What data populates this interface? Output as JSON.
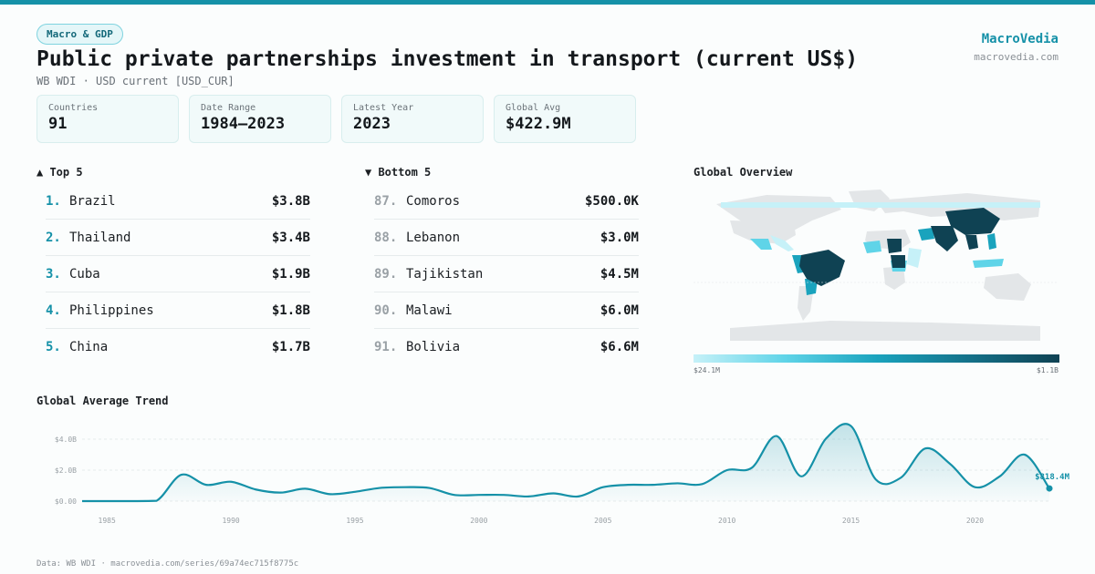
{
  "header": {
    "badge": "Macro & GDP",
    "title": "Public private partnerships investment in transport (current US$)",
    "subtitle": "WB WDI · USD current [USD_CUR]",
    "brand": "MacroVedia",
    "brand_url": "macrovedia.com"
  },
  "stats": [
    {
      "label": "Countries",
      "value": "91"
    },
    {
      "label": "Date Range",
      "value": "1984–2023"
    },
    {
      "label": "Latest Year",
      "value": "2023"
    },
    {
      "label": "Global Avg",
      "value": "$422.9M"
    }
  ],
  "top5": {
    "heading": "▲ Top 5",
    "rows": [
      {
        "rank": "1.",
        "name": "Brazil",
        "value": "$3.8B"
      },
      {
        "rank": "2.",
        "name": "Thailand",
        "value": "$3.4B"
      },
      {
        "rank": "3.",
        "name": "Cuba",
        "value": "$1.9B"
      },
      {
        "rank": "4.",
        "name": "Philippines",
        "value": "$1.8B"
      },
      {
        "rank": "5.",
        "name": "China",
        "value": "$1.7B"
      }
    ]
  },
  "bottom5": {
    "heading": "▼ Bottom 5",
    "rows": [
      {
        "rank": "87.",
        "name": "Comoros",
        "value": "$500.0K"
      },
      {
        "rank": "88.",
        "name": "Lebanon",
        "value": "$3.0M"
      },
      {
        "rank": "89.",
        "name": "Tajikistan",
        "value": "$4.5M"
      },
      {
        "rank": "90.",
        "name": "Malawi",
        "value": "$6.0M"
      },
      {
        "rank": "91.",
        "name": "Bolivia",
        "value": "$6.6M"
      }
    ]
  },
  "map": {
    "heading": "Global Overview",
    "legend_min": "$24.1M",
    "legend_max": "$1.1B",
    "colors": {
      "none": "#e3e6e8",
      "low": "#c6f1f8",
      "mid": "#5fd4e8",
      "high": "#1aa3bd",
      "top": "#0f4253"
    }
  },
  "trend": {
    "heading": "Global Average Trend",
    "last_label": "$818.4M"
  },
  "chart_data": {
    "type": "area",
    "x": [
      1984,
      1985,
      1986,
      1987,
      1988,
      1989,
      1990,
      1991,
      1992,
      1993,
      1994,
      1995,
      1996,
      1997,
      1998,
      1999,
      2000,
      2001,
      2002,
      2003,
      2004,
      2005,
      2006,
      2007,
      2008,
      2009,
      2010,
      2011,
      2012,
      2013,
      2014,
      2015,
      2016,
      2017,
      2018,
      2019,
      2020,
      2021,
      2022,
      2023
    ],
    "y": [
      0.0,
      0.0,
      0.0,
      0.02,
      1.7,
      1.05,
      1.25,
      0.75,
      0.55,
      0.8,
      0.45,
      0.6,
      0.85,
      0.9,
      0.85,
      0.4,
      0.4,
      0.4,
      0.3,
      0.5,
      0.3,
      0.9,
      1.05,
      1.05,
      1.15,
      1.1,
      2.0,
      2.15,
      4.2,
      1.6,
      4.05,
      4.85,
      1.4,
      1.5,
      3.4,
      2.4,
      0.9,
      1.6,
      3.0,
      0.8184
    ],
    "yticks": [
      "$0.00",
      "$2.0B",
      "$4.0B"
    ],
    "ytick_values": [
      0,
      2,
      4
    ],
    "xticks": [
      1985,
      1990,
      1995,
      2000,
      2005,
      2010,
      2015,
      2020
    ],
    "ylim": [
      0,
      5
    ],
    "unit": "billion current US$",
    "line_color": "#1591a8"
  }
}
